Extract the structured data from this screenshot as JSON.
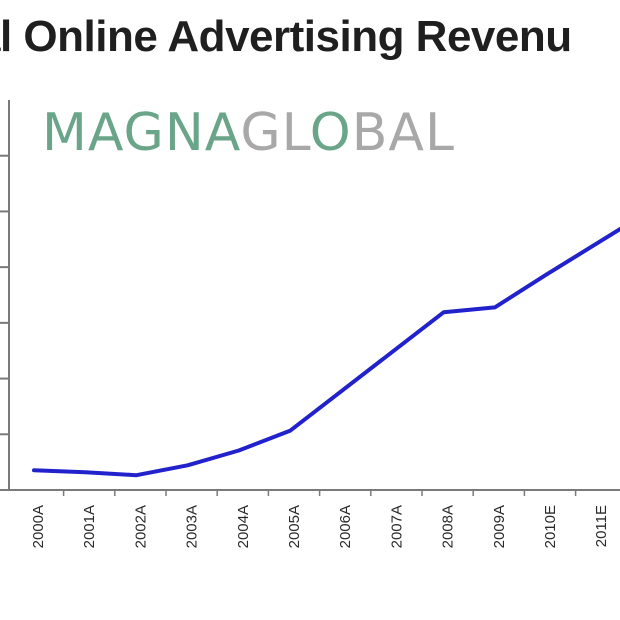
{
  "chart_data": {
    "type": "line",
    "title": "al Online Advertising Revenu",
    "watermark": {
      "text": "MAGNAGLOBAL",
      "green_part": "MAGNA",
      "gray_part": "GL",
      "gray_tail": "BAL",
      "color_green": "#6aa58a",
      "color_gray": "#a8a8a8"
    },
    "categories": [
      "2000A",
      "2001A",
      "2002A",
      "2003A",
      "2004A",
      "2005A",
      "2006A",
      "2007A",
      "2008A",
      "2009A",
      "2010E",
      "2011E"
    ],
    "series": [
      {
        "values": [
          0.5,
          0.3,
          0.0,
          1.0,
          2.5,
          4.5,
          8.5,
          12.5,
          16.5,
          17.0,
          20.3,
          23.5
        ],
        "color": "#2222cc"
      }
    ],
    "ylim": [
      -1.5,
      37
    ],
    "y_ticks_count": 7,
    "grid": false,
    "legend": "none"
  }
}
